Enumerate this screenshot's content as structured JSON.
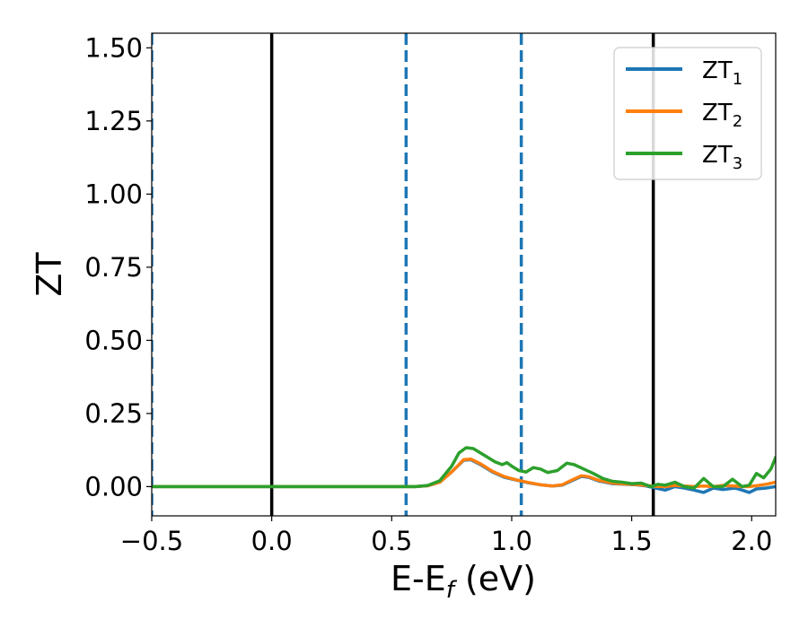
{
  "chart_data": {
    "type": "line",
    "xlabel_main": "E-E",
    "xlabel_sub": "f",
    "xlabel_unit": " (eV)",
    "ylabel": "ZT",
    "xlim": [
      -0.5,
      2.1
    ],
    "ylim": [
      -0.1,
      1.55
    ],
    "grid": false,
    "legend_position": "top-right",
    "x_ticks": [
      -0.5,
      0.0,
      0.5,
      1.0,
      1.5,
      2.0
    ],
    "x_tick_labels": [
      "−0.5",
      "0.0",
      "0.5",
      "1.0",
      "1.5",
      "2.0"
    ],
    "y_ticks": [
      0.0,
      0.25,
      0.5,
      0.75,
      1.0,
      1.25,
      1.5
    ],
    "y_tick_labels": [
      "0.00",
      "0.25",
      "0.50",
      "0.75",
      "1.00",
      "1.25",
      "1.50"
    ],
    "reference_lines": [
      {
        "x": -0.5,
        "style": "dashed",
        "color": "#1f77b4"
      },
      {
        "x": 0.0,
        "style": "solid",
        "color": "#000000"
      },
      {
        "x": 0.56,
        "style": "dashed",
        "color": "#1f77b4"
      },
      {
        "x": 1.04,
        "style": "dashed",
        "color": "#1f77b4"
      },
      {
        "x": 1.59,
        "style": "solid",
        "color": "#000000"
      }
    ],
    "series": [
      {
        "name_main": "ZT",
        "name_sub": "1",
        "color": "#1f77b4",
        "points": [
          [
            -0.5,
            0.0
          ],
          [
            0.5,
            0.0
          ],
          [
            0.6,
            0.0
          ],
          [
            0.65,
            0.003
          ],
          [
            0.7,
            0.015
          ],
          [
            0.75,
            0.05
          ],
          [
            0.8,
            0.09
          ],
          [
            0.83,
            0.092
          ],
          [
            0.87,
            0.075
          ],
          [
            0.92,
            0.05
          ],
          [
            0.97,
            0.032
          ],
          [
            1.02,
            0.022
          ],
          [
            1.07,
            0.013
          ],
          [
            1.12,
            0.006
          ],
          [
            1.17,
            0.002
          ],
          [
            1.21,
            0.005
          ],
          [
            1.25,
            0.02
          ],
          [
            1.29,
            0.035
          ],
          [
            1.32,
            0.032
          ],
          [
            1.36,
            0.02
          ],
          [
            1.42,
            0.01
          ],
          [
            1.47,
            0.008
          ],
          [
            1.52,
            0.006
          ],
          [
            1.56,
            0.002
          ],
          [
            1.6,
            -0.005
          ],
          [
            1.64,
            -0.012
          ],
          [
            1.68,
            0.0
          ],
          [
            1.72,
            -0.005
          ],
          [
            1.76,
            -0.012
          ],
          [
            1.8,
            -0.02
          ],
          [
            1.84,
            -0.005
          ],
          [
            1.88,
            -0.01
          ],
          [
            1.93,
            -0.005
          ],
          [
            1.96,
            -0.012
          ],
          [
            1.99,
            -0.02
          ],
          [
            2.02,
            -0.008
          ],
          [
            2.06,
            -0.005
          ],
          [
            2.1,
            0.0
          ]
        ]
      },
      {
        "name_main": "ZT",
        "name_sub": "2",
        "color": "#ff7f0e",
        "points": [
          [
            -0.5,
            0.0
          ],
          [
            0.5,
            0.0
          ],
          [
            0.6,
            0.0
          ],
          [
            0.65,
            0.003
          ],
          [
            0.7,
            0.015
          ],
          [
            0.75,
            0.05
          ],
          [
            0.8,
            0.092
          ],
          [
            0.83,
            0.094
          ],
          [
            0.87,
            0.078
          ],
          [
            0.92,
            0.052
          ],
          [
            0.97,
            0.034
          ],
          [
            1.02,
            0.023
          ],
          [
            1.07,
            0.014
          ],
          [
            1.12,
            0.006
          ],
          [
            1.17,
            0.002
          ],
          [
            1.21,
            0.006
          ],
          [
            1.25,
            0.022
          ],
          [
            1.29,
            0.037
          ],
          [
            1.32,
            0.034
          ],
          [
            1.36,
            0.022
          ],
          [
            1.42,
            0.012
          ],
          [
            1.47,
            0.009
          ],
          [
            1.52,
            0.007
          ],
          [
            1.56,
            0.004
          ],
          [
            1.6,
            0.001
          ],
          [
            1.64,
            0.0
          ],
          [
            1.68,
            0.004
          ],
          [
            1.72,
            0.002
          ],
          [
            1.76,
            0.0
          ],
          [
            1.8,
            0.002
          ],
          [
            1.84,
            0.0
          ],
          [
            1.88,
            0.004
          ],
          [
            1.93,
            0.002
          ],
          [
            1.96,
            0.0
          ],
          [
            1.99,
            0.0
          ],
          [
            2.02,
            0.003
          ],
          [
            2.06,
            0.008
          ],
          [
            2.1,
            0.015
          ]
        ]
      },
      {
        "name_main": "ZT",
        "name_sub": "3",
        "color": "#2ca02c",
        "points": [
          [
            -0.5,
            0.0
          ],
          [
            0.5,
            0.0
          ],
          [
            0.6,
            0.0
          ],
          [
            0.65,
            0.004
          ],
          [
            0.7,
            0.02
          ],
          [
            0.75,
            0.07
          ],
          [
            0.78,
            0.115
          ],
          [
            0.81,
            0.133
          ],
          [
            0.84,
            0.13
          ],
          [
            0.87,
            0.115
          ],
          [
            0.9,
            0.1
          ],
          [
            0.93,
            0.085
          ],
          [
            0.96,
            0.075
          ],
          [
            0.98,
            0.082
          ],
          [
            1.0,
            0.07
          ],
          [
            1.03,
            0.055
          ],
          [
            1.06,
            0.05
          ],
          [
            1.09,
            0.065
          ],
          [
            1.12,
            0.06
          ],
          [
            1.15,
            0.048
          ],
          [
            1.19,
            0.055
          ],
          [
            1.23,
            0.08
          ],
          [
            1.26,
            0.075
          ],
          [
            1.3,
            0.06
          ],
          [
            1.34,
            0.045
          ],
          [
            1.38,
            0.028
          ],
          [
            1.42,
            0.018
          ],
          [
            1.46,
            0.015
          ],
          [
            1.5,
            0.01
          ],
          [
            1.54,
            0.012
          ],
          [
            1.58,
            0.0
          ],
          [
            1.61,
            0.008
          ],
          [
            1.64,
            0.005
          ],
          [
            1.68,
            0.015
          ],
          [
            1.72,
            0.0
          ],
          [
            1.76,
            -0.005
          ],
          [
            1.8,
            0.028
          ],
          [
            1.84,
            0.0
          ],
          [
            1.88,
            0.0
          ],
          [
            1.92,
            0.025
          ],
          [
            1.96,
            0.0
          ],
          [
            1.99,
            0.005
          ],
          [
            2.02,
            0.045
          ],
          [
            2.05,
            0.03
          ],
          [
            2.08,
            0.06
          ],
          [
            2.1,
            0.1
          ]
        ]
      }
    ]
  }
}
